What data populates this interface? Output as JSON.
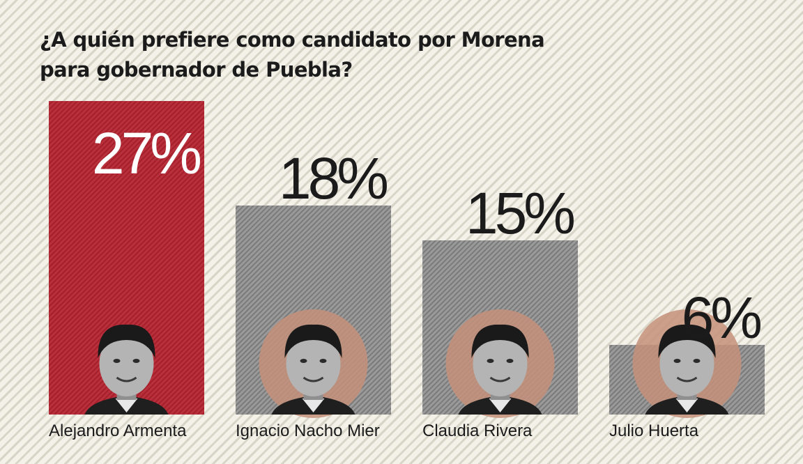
{
  "chart_data": {
    "type": "bar",
    "title_lines": [
      "¿A quién prefiere como candidato por Morena",
      "para gobernador de Puebla?"
    ],
    "categories": [
      "Alejandro Armenta",
      "Ignacio Nacho Mier",
      "Claudia Rivera",
      "Julio Huerta"
    ],
    "values": [
      27,
      18,
      15,
      6
    ],
    "value_labels": [
      "27%",
      "18%",
      "15%",
      "6%"
    ],
    "ylim": [
      0,
      27
    ],
    "xlabel": "",
    "ylabel": "",
    "grid": false,
    "colors": {
      "highlight": "#b3232f",
      "bar": "#8e8e8e",
      "photo_circle": "#c4907a",
      "text": "#1b1b1b",
      "background": "#f3f1e8"
    },
    "highlight_index": 0,
    "photo_icons": [
      "person-photo-icon",
      "person-photo-icon",
      "person-photo-icon",
      "person-photo-icon"
    ]
  }
}
